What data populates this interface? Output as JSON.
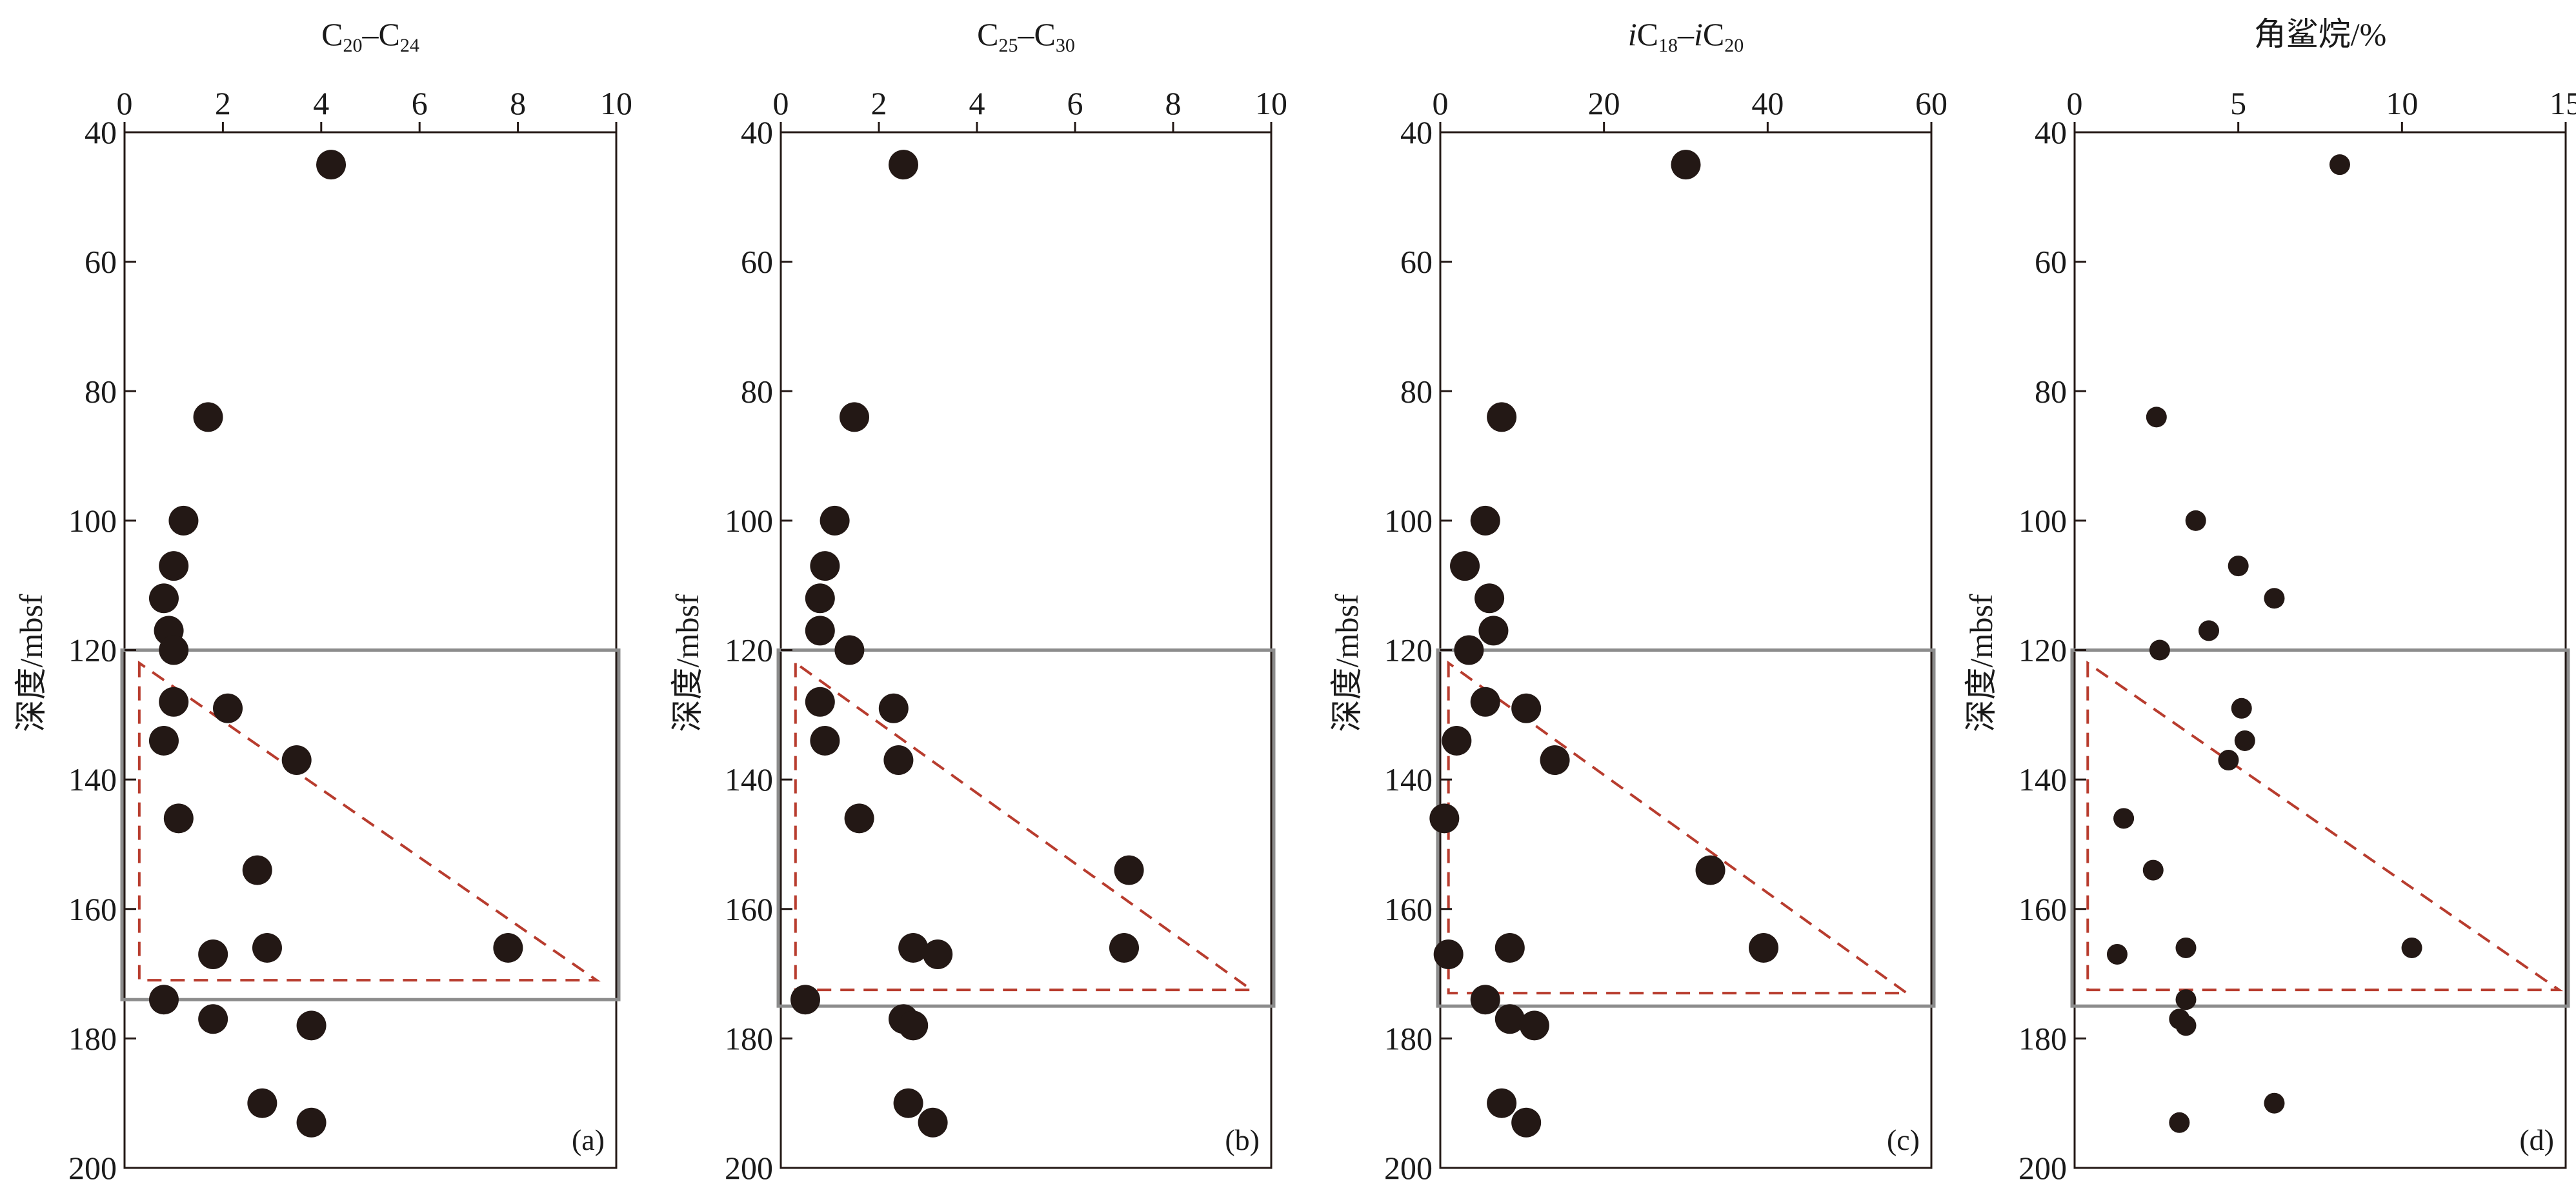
{
  "figure": {
    "y_axis_label": "深度/mbsf",
    "colors": {
      "points": "#231815",
      "axes": "#231815",
      "box": "#8c8c8c",
      "trend": "#b83c2e"
    }
  },
  "chart_data": [
    {
      "type": "scatter",
      "panel_label": "(a)",
      "title": {
        "base1": "C",
        "sub1": "20",
        "dash": "–",
        "base2": "C",
        "sub2": "24"
      },
      "title_text": "C20–C24",
      "ylabel": "深度/mbsf",
      "xlim": [
        0,
        10
      ],
      "ylim": [
        40,
        200
      ],
      "xticks": [
        "0",
        "2",
        "4",
        "6",
        "8",
        "10"
      ],
      "yticks": [
        "40",
        "60",
        "80",
        "100",
        "120",
        "140",
        "160",
        "180",
        "200"
      ],
      "box_depth_range": [
        120,
        174
      ],
      "trend_triangle": [
        [
          0.3,
          122
        ],
        [
          0.3,
          171
        ],
        [
          9.6,
          171
        ]
      ],
      "points": [
        {
          "x": 4.2,
          "y": 45
        },
        {
          "x": 1.7,
          "y": 84
        },
        {
          "x": 1.2,
          "y": 100
        },
        {
          "x": 1.0,
          "y": 107
        },
        {
          "x": 0.8,
          "y": 112
        },
        {
          "x": 0.9,
          "y": 117
        },
        {
          "x": 1.0,
          "y": 120
        },
        {
          "x": 1.0,
          "y": 128
        },
        {
          "x": 2.1,
          "y": 129
        },
        {
          "x": 0.8,
          "y": 134
        },
        {
          "x": 3.5,
          "y": 137
        },
        {
          "x": 1.1,
          "y": 146
        },
        {
          "x": 2.7,
          "y": 154
        },
        {
          "x": 2.9,
          "y": 166
        },
        {
          "x": 7.8,
          "y": 166
        },
        {
          "x": 1.8,
          "y": 167
        },
        {
          "x": 0.8,
          "y": 174
        },
        {
          "x": 1.8,
          "y": 177
        },
        {
          "x": 3.8,
          "y": 178
        },
        {
          "x": 2.8,
          "y": 190
        },
        {
          "x": 3.8,
          "y": 193
        }
      ]
    },
    {
      "type": "scatter",
      "panel_label": "(b)",
      "title": {
        "base1": "C",
        "sub1": "25",
        "dash": "–",
        "base2": "C",
        "sub2": "30"
      },
      "title_text": "C25–C30",
      "ylabel": "深度/mbsf",
      "xlim": [
        0,
        10
      ],
      "ylim": [
        40,
        200
      ],
      "xticks": [
        "0",
        "2",
        "4",
        "6",
        "8",
        "10"
      ],
      "yticks": [
        "40",
        "60",
        "80",
        "100",
        "120",
        "140",
        "160",
        "180",
        "200"
      ],
      "box_depth_range": [
        120,
        175
      ],
      "trend_triangle": [
        [
          0.3,
          122
        ],
        [
          0.3,
          172.5
        ],
        [
          9.6,
          172.5
        ]
      ],
      "points": [
        {
          "x": 2.5,
          "y": 45
        },
        {
          "x": 1.5,
          "y": 84
        },
        {
          "x": 1.1,
          "y": 100
        },
        {
          "x": 0.9,
          "y": 107
        },
        {
          "x": 0.8,
          "y": 112
        },
        {
          "x": 0.8,
          "y": 117
        },
        {
          "x": 1.4,
          "y": 120
        },
        {
          "x": 0.8,
          "y": 128
        },
        {
          "x": 2.3,
          "y": 129
        },
        {
          "x": 0.9,
          "y": 134
        },
        {
          "x": 2.4,
          "y": 137
        },
        {
          "x": 1.6,
          "y": 146
        },
        {
          "x": 7.1,
          "y": 154
        },
        {
          "x": 2.7,
          "y": 166
        },
        {
          "x": 7.0,
          "y": 166
        },
        {
          "x": 3.2,
          "y": 167
        },
        {
          "x": 0.5,
          "y": 174
        },
        {
          "x": 2.5,
          "y": 177
        },
        {
          "x": 2.7,
          "y": 178
        },
        {
          "x": 2.6,
          "y": 190
        },
        {
          "x": 3.1,
          "y": 193
        }
      ]
    },
    {
      "type": "scatter",
      "panel_label": "(c)",
      "title": {
        "pre": "i",
        "base1": "C",
        "sub1": "18",
        "dash": "–",
        "pre2": "i",
        "base2": "C",
        "sub2": "20"
      },
      "title_text": "iC18–iC20",
      "ylabel": "深度/mbsf",
      "xlim": [
        0,
        60
      ],
      "ylim": [
        40,
        200
      ],
      "xticks": [
        "0",
        "20",
        "40",
        "60"
      ],
      "yticks": [
        "40",
        "60",
        "80",
        "100",
        "120",
        "140",
        "160",
        "180",
        "200"
      ],
      "box_depth_range": [
        120,
        175
      ],
      "trend_triangle": [
        [
          1,
          122
        ],
        [
          1,
          173
        ],
        [
          57,
          173
        ]
      ],
      "points": [
        {
          "x": 30,
          "y": 45
        },
        {
          "x": 7.5,
          "y": 84
        },
        {
          "x": 5.5,
          "y": 100
        },
        {
          "x": 3.0,
          "y": 107
        },
        {
          "x": 6.0,
          "y": 112
        },
        {
          "x": 6.5,
          "y": 117
        },
        {
          "x": 3.5,
          "y": 120
        },
        {
          "x": 5.5,
          "y": 128
        },
        {
          "x": 10.5,
          "y": 129
        },
        {
          "x": 2.0,
          "y": 134
        },
        {
          "x": 14.0,
          "y": 137
        },
        {
          "x": 0.5,
          "y": 146
        },
        {
          "x": 33.0,
          "y": 154
        },
        {
          "x": 8.5,
          "y": 166
        },
        {
          "x": 39.5,
          "y": 166
        },
        {
          "x": 1.0,
          "y": 167
        },
        {
          "x": 5.5,
          "y": 174
        },
        {
          "x": 8.5,
          "y": 177
        },
        {
          "x": 11.5,
          "y": 178
        },
        {
          "x": 7.5,
          "y": 190
        },
        {
          "x": 10.5,
          "y": 193
        }
      ]
    },
    {
      "type": "scatter",
      "panel_label": "(d)",
      "title": {
        "text": "角鲨烷/%"
      },
      "title_text": "角鲨烷/%",
      "ylabel": "深度/mbsf",
      "xlim": [
        0,
        15
      ],
      "ylim": [
        40,
        200
      ],
      "xticks": [
        "0",
        "5",
        "10",
        "15"
      ],
      "yticks": [
        "40",
        "60",
        "80",
        "100",
        "120",
        "140",
        "160",
        "180",
        "200"
      ],
      "box_depth_range": [
        120,
        175
      ],
      "trend_triangle": [
        [
          0.4,
          122
        ],
        [
          0.4,
          172.5
        ],
        [
          14.8,
          172.5
        ]
      ],
      "points": [
        {
          "x": 8.1,
          "y": 45
        },
        {
          "x": 2.5,
          "y": 84
        },
        {
          "x": 3.7,
          "y": 100
        },
        {
          "x": 5.0,
          "y": 107
        },
        {
          "x": 6.1,
          "y": 112
        },
        {
          "x": 4.1,
          "y": 117
        },
        {
          "x": 2.6,
          "y": 120
        },
        {
          "x": 5.1,
          "y": 129
        },
        {
          "x": 5.2,
          "y": 134
        },
        {
          "x": 4.7,
          "y": 137
        },
        {
          "x": 1.5,
          "y": 146
        },
        {
          "x": 2.4,
          "y": 154
        },
        {
          "x": 10.3,
          "y": 166
        },
        {
          "x": 3.4,
          "y": 166
        },
        {
          "x": 1.3,
          "y": 167
        },
        {
          "x": 3.4,
          "y": 174
        },
        {
          "x": 3.2,
          "y": 177
        },
        {
          "x": 3.4,
          "y": 178
        },
        {
          "x": 6.1,
          "y": 190
        },
        {
          "x": 3.2,
          "y": 193
        }
      ]
    }
  ]
}
